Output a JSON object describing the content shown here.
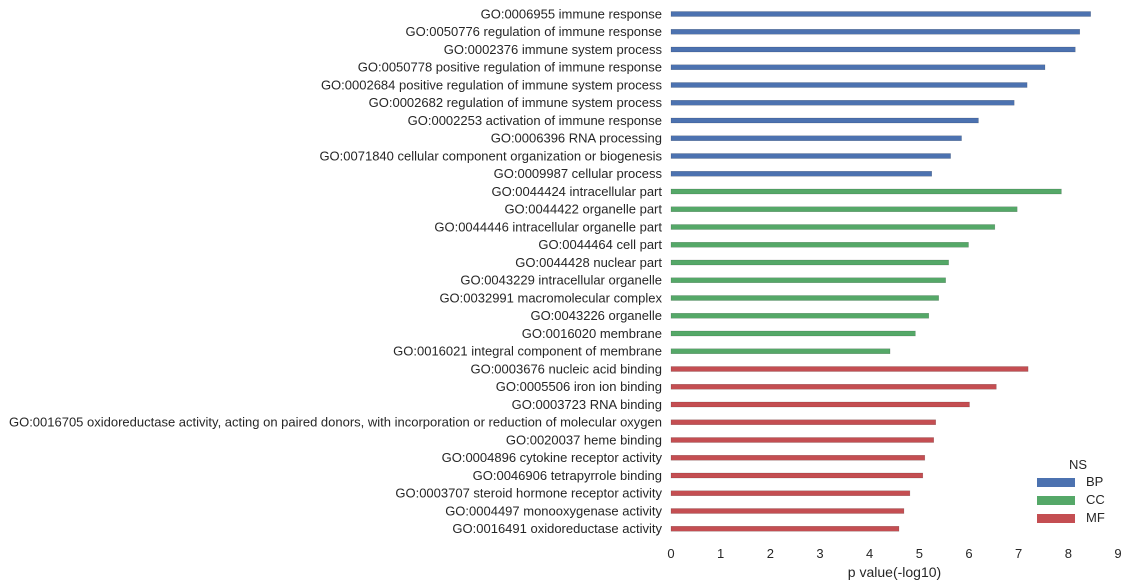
{
  "chart_data": {
    "type": "bar",
    "orientation": "horizontal",
    "xlabel": "p value(-log10)",
    "xlim": [
      0,
      9
    ],
    "xticks": [
      0,
      1,
      2,
      3,
      4,
      5,
      6,
      7,
      8,
      9
    ],
    "grid": false,
    "legend": {
      "title": "NS",
      "placement": "lower-right",
      "entries": [
        {
          "name": "BP",
          "color": "#4c72b0"
        },
        {
          "name": "CC",
          "color": "#55a868"
        },
        {
          "name": "MF",
          "color": "#c44e52"
        }
      ]
    },
    "categories": [
      {
        "label": "GO:0006955 immune response",
        "value": 8.45,
        "ns": "BP"
      },
      {
        "label": "GO:0050776 regulation of immune response",
        "value": 8.23,
        "ns": "BP"
      },
      {
        "label": "GO:0002376 immune system process",
        "value": 8.14,
        "ns": "BP"
      },
      {
        "label": "GO:0050778 positive regulation of immune response",
        "value": 7.53,
        "ns": "BP"
      },
      {
        "label": "GO:0002684 positive regulation of immune system process",
        "value": 7.17,
        "ns": "BP"
      },
      {
        "label": "GO:0002682 regulation of immune system process",
        "value": 6.91,
        "ns": "BP"
      },
      {
        "label": "GO:0002253 activation of immune response",
        "value": 6.19,
        "ns": "BP"
      },
      {
        "label": "GO:0006396 RNA processing",
        "value": 5.85,
        "ns": "BP"
      },
      {
        "label": "GO:0071840 cellular component organization or biogenesis",
        "value": 5.63,
        "ns": "BP"
      },
      {
        "label": "GO:0009987 cellular process",
        "value": 5.25,
        "ns": "BP"
      },
      {
        "label": "GO:0044424 intracellular part",
        "value": 7.86,
        "ns": "CC"
      },
      {
        "label": "GO:0044422 organelle part",
        "value": 6.97,
        "ns": "CC"
      },
      {
        "label": "GO:0044446 intracellular organelle part",
        "value": 6.52,
        "ns": "CC"
      },
      {
        "label": "GO:0044464 cell part",
        "value": 5.99,
        "ns": "CC"
      },
      {
        "label": "GO:0044428 nuclear part",
        "value": 5.59,
        "ns": "CC"
      },
      {
        "label": "GO:0043229 intracellular organelle",
        "value": 5.53,
        "ns": "CC"
      },
      {
        "label": "GO:0032991 macromolecular complex",
        "value": 5.39,
        "ns": "CC"
      },
      {
        "label": "GO:0043226 organelle",
        "value": 5.19,
        "ns": "CC"
      },
      {
        "label": "GO:0016020 membrane",
        "value": 4.92,
        "ns": "CC"
      },
      {
        "label": "GO:0016021 integral component of membrane",
        "value": 4.41,
        "ns": "CC"
      },
      {
        "label": "GO:0003676 nucleic acid binding",
        "value": 7.19,
        "ns": "MF"
      },
      {
        "label": "GO:0005506 iron ion binding",
        "value": 6.55,
        "ns": "MF"
      },
      {
        "label": "GO:0003723 RNA binding",
        "value": 6.01,
        "ns": "MF"
      },
      {
        "label": "GO:0016705 oxidoreductase activity, acting on paired donors, with incorporation or reduction of molecular oxygen",
        "value": 5.33,
        "ns": "MF"
      },
      {
        "label": "GO:0020037 heme binding",
        "value": 5.29,
        "ns": "MF"
      },
      {
        "label": "GO:0004896 cytokine receptor activity",
        "value": 5.11,
        "ns": "MF"
      },
      {
        "label": "GO:0046906 tetrapyrrole binding",
        "value": 5.07,
        "ns": "MF"
      },
      {
        "label": "GO:0003707 steroid hormone receptor activity",
        "value": 4.81,
        "ns": "MF"
      },
      {
        "label": "GO:0004497 monooxygenase activity",
        "value": 4.69,
        "ns": "MF"
      },
      {
        "label": "GO:0016491 oxidoreductase activity",
        "value": 4.59,
        "ns": "MF"
      }
    ]
  }
}
